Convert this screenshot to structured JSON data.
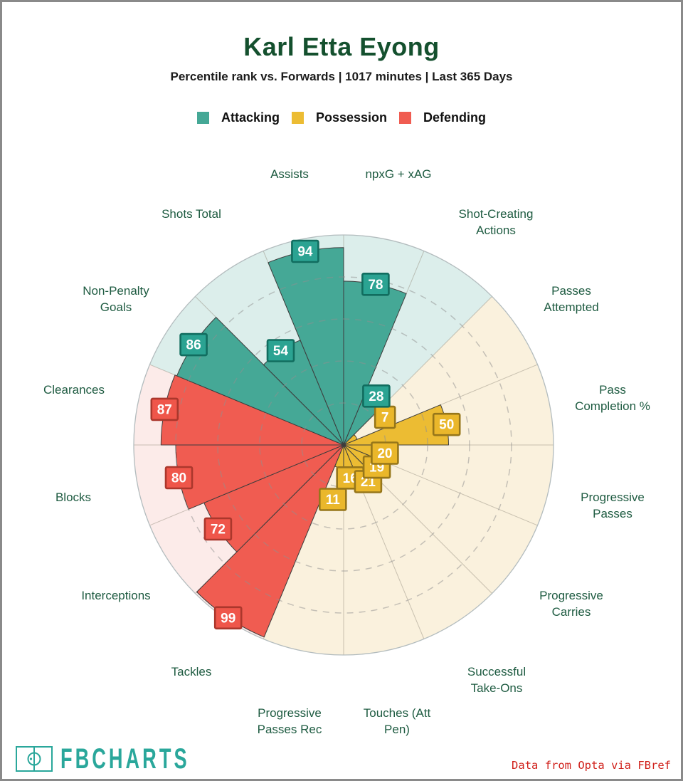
{
  "page": {
    "title": "Karl Etta Eyong",
    "subtitle": "Percentile rank vs. Forwards | 1017 minutes | Last 365 Days"
  },
  "legend": [
    {
      "label": "Attacking",
      "color": "#45a896"
    },
    {
      "label": "Possession",
      "color": "#ecbc33"
    },
    {
      "label": "Defending",
      "color": "#f05c51"
    }
  ],
  "footer": {
    "brand": "FBCHARTS",
    "brand_color": "#2aa79b",
    "icon": "football-pitch-icon",
    "attribution": "Data from Opta via FBref",
    "attribution_color": "#d0201a"
  },
  "colors": {
    "title_green": "#14502e",
    "category_label_green": "#1e5b41",
    "wedge_outline": "#3d3d3d",
    "grid_dash": "#909090",
    "radial_line": "#8c8474",
    "outer_circle": "#b3bcbe",
    "frame_border": "#8a8a8a"
  },
  "chart_data": {
    "type": "pie",
    "variant": "polar-percentile-bar (pizza chart)",
    "title": "Karl Etta Eyong",
    "subtitle": "Percentile rank vs. Forwards | 1017 minutes | Last 365 Days",
    "ylim": [
      0,
      100
    ],
    "gridlines_pct": [
      20,
      40,
      60,
      80
    ],
    "direction": "clockwise",
    "start": "top",
    "slice_span_deg": 22.5,
    "legend_position": "top",
    "groups": [
      {
        "name": "Attacking",
        "color": "#45a896",
        "bg": "#dceeeb",
        "badge": "#2ba392",
        "badge_border": "#116d5f"
      },
      {
        "name": "Possession",
        "color": "#ecbc33",
        "bg": "#faf1dd",
        "badge": "#eab72b",
        "badge_border": "#96761a"
      },
      {
        "name": "Defending",
        "color": "#f05c51",
        "bg": "#fcebe9",
        "badge": "#ef564a",
        "badge_border": "#ab372c"
      }
    ],
    "slices": [
      {
        "key": "npxg_xag",
        "label": "npxG + xAG",
        "lines": [
          "npxG + xAG"
        ],
        "value": 78,
        "group": "Attacking"
      },
      {
        "key": "shot_creating_actions",
        "label": "Shot-Creating Actions",
        "lines": [
          "Shot-Creating",
          "Actions"
        ],
        "value": 28,
        "group": "Attacking"
      },
      {
        "key": "passes_attempted",
        "label": "Passes Attempted",
        "lines": [
          "Passes",
          "Attempted"
        ],
        "value": 7,
        "group": "Possession"
      },
      {
        "key": "pass_completion_pct",
        "label": "Pass Completion %",
        "lines": [
          "Pass",
          "Completion %"
        ],
        "value": 50,
        "group": "Possession"
      },
      {
        "key": "progressive_passes",
        "label": "Progressive Passes",
        "lines": [
          "Progressive",
          "Passes"
        ],
        "value": 20,
        "group": "Possession"
      },
      {
        "key": "progressive_carries",
        "label": "Progressive Carries",
        "lines": [
          "Progressive",
          "Carries"
        ],
        "value": 19,
        "group": "Possession"
      },
      {
        "key": "successful_take_ons",
        "label": "Successful Take-Ons",
        "lines": [
          "Successful",
          "Take-Ons"
        ],
        "value": 21,
        "group": "Possession"
      },
      {
        "key": "touches_att_pen",
        "label": "Touches (Att Pen)",
        "lines": [
          "Touches (Att",
          "Pen)"
        ],
        "value": 16,
        "group": "Possession"
      },
      {
        "key": "progressive_passes_rec",
        "label": "Progressive Passes Rec",
        "lines": [
          "Progressive",
          "Passes Rec"
        ],
        "value": 11,
        "group": "Possession"
      },
      {
        "key": "tackles",
        "label": "Tackles",
        "lines": [
          "Tackles"
        ],
        "value": 99,
        "group": "Defending"
      },
      {
        "key": "interceptions",
        "label": "Interceptions",
        "lines": [
          "Interceptions"
        ],
        "value": 72,
        "group": "Defending"
      },
      {
        "key": "blocks",
        "label": "Blocks",
        "lines": [
          "Blocks"
        ],
        "value": 80,
        "group": "Defending"
      },
      {
        "key": "clearances",
        "label": "Clearances",
        "lines": [
          "Clearances"
        ],
        "value": 87,
        "group": "Defending"
      },
      {
        "key": "non_penalty_goals",
        "label": "Non-Penalty Goals",
        "lines": [
          "Non-Penalty",
          "Goals"
        ],
        "value": 86,
        "group": "Attacking"
      },
      {
        "key": "shots_total",
        "label": "Shots Total",
        "lines": [
          "Shots Total"
        ],
        "value": 54,
        "group": "Attacking"
      },
      {
        "key": "assists",
        "label": "Assists",
        "lines": [
          "Assists"
        ],
        "value": 94,
        "group": "Attacking"
      }
    ]
  }
}
